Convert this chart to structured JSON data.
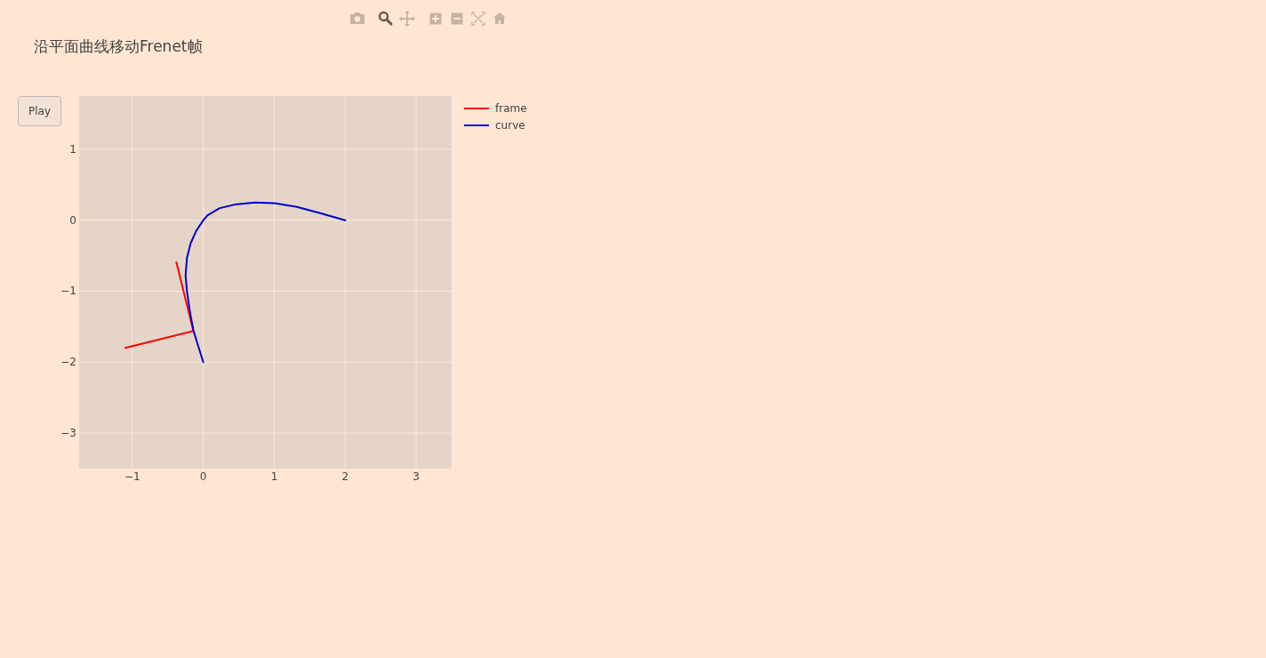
{
  "chart_data": {
    "type": "line",
    "title": "沿平面曲线移动Frenet帧",
    "annotations": [
      "Play"
    ],
    "series": [
      {
        "name": "frame",
        "color": "#ff0000",
        "x": [
          -0.38,
          -0.14,
          -1.1
        ],
        "values": [
          -0.59,
          -1.56,
          -1.8
        ]
      },
      {
        "name": "curve",
        "color": "#0000cd",
        "x": [
          2,
          1.65,
          1.31,
          1.0,
          0.73,
          0.44,
          0.23,
          0.06,
          0,
          -0.1,
          -0.18,
          -0.23,
          -0.25,
          -0.23,
          -0.19,
          -0.14,
          -0.07,
          0
        ],
        "values": [
          0,
          0.1,
          0.19,
          0.24,
          0.25,
          0.22,
          0.17,
          0.07,
          0,
          -0.15,
          -0.33,
          -0.53,
          -0.78,
          -1.0,
          -1.28,
          -1.55,
          -1.78,
          -2
        ]
      }
    ],
    "xlim": [
      -1.75,
      3.5
    ],
    "ylim": [
      -3.5,
      1.75
    ],
    "xticks": [
      -1,
      0,
      1,
      2,
      3
    ],
    "yticks": [
      -3,
      -2,
      -1,
      0,
      1
    ],
    "grid": true,
    "legend": "top right"
  }
}
